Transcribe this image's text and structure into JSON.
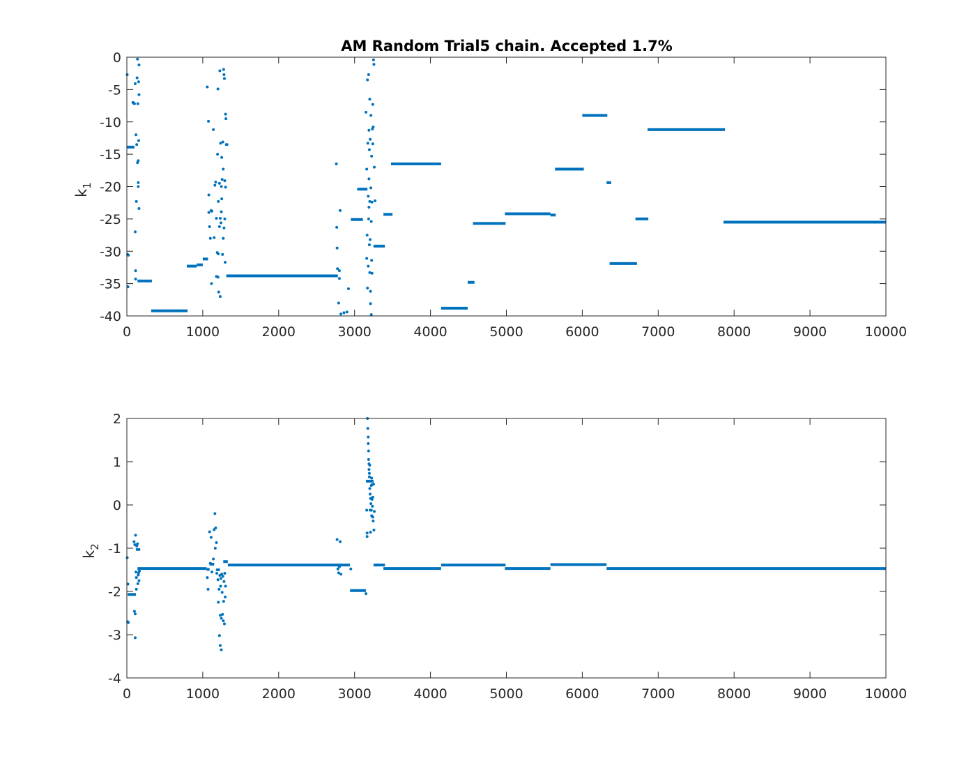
{
  "chart_data": [
    {
      "type": "scatter",
      "title": "AM Random Trial5 chain. Accepted 1.7%",
      "xlabel": "",
      "ylabel": "k",
      "ylabel_subscript": "1",
      "xlim": [
        0,
        10000
      ],
      "ylim": [
        -40,
        0
      ],
      "xticks": [
        0,
        1000,
        2000,
        3000,
        4000,
        5000,
        6000,
        7000,
        8000,
        9000,
        10000
      ],
      "yticks": [
        0,
        -5,
        -10,
        -15,
        -20,
        -25,
        -30,
        -35,
        -40
      ],
      "grid": false,
      "marker_color": "#0072BD",
      "segments": [
        {
          "x0": 0,
          "x1": 100,
          "y": -13.9
        },
        {
          "x0": 140,
          "x1": 330,
          "y": -34.6
        },
        {
          "x0": 320,
          "x1": 800,
          "y": -39.2
        },
        {
          "x0": 790,
          "x1": 920,
          "y": -32.3
        },
        {
          "x0": 920,
          "x1": 1000,
          "y": -32.1
        },
        {
          "x0": 1000,
          "x1": 1070,
          "y": -31.2
        },
        {
          "x0": 1310,
          "x1": 2780,
          "y": -33.8
        },
        {
          "x0": 2950,
          "x1": 3110,
          "y": -25.1
        },
        {
          "x0": 3060,
          "x1": 3170,
          "y": -20.4
        },
        {
          "x0": 3250,
          "x1": 3400,
          "y": -29.2
        },
        {
          "x0": 3380,
          "x1": 3500,
          "y": -24.3
        },
        {
          "x0": 3480,
          "x1": 4140,
          "y": -16.5
        },
        {
          "x0": 4140,
          "x1": 4490,
          "y": -38.8
        },
        {
          "x0": 4490,
          "x1": 4580,
          "y": -34.8
        },
        {
          "x0": 4560,
          "x1": 4990,
          "y": -25.7
        },
        {
          "x0": 4980,
          "x1": 5580,
          "y": -24.2
        },
        {
          "x0": 5580,
          "x1": 5650,
          "y": -24.4
        },
        {
          "x0": 5640,
          "x1": 6020,
          "y": -17.3
        },
        {
          "x0": 6000,
          "x1": 6330,
          "y": -9.0
        },
        {
          "x0": 6320,
          "x1": 6380,
          "y": -19.4
        },
        {
          "x0": 6360,
          "x1": 6720,
          "y": -31.9
        },
        {
          "x0": 6700,
          "x1": 6870,
          "y": -25.0
        },
        {
          "x0": 6860,
          "x1": 7880,
          "y": -11.2
        },
        {
          "x0": 7860,
          "x1": 10000,
          "y": -25.5
        }
      ],
      "points": [
        [
          5,
          -2.7
        ],
        [
          10,
          -30.5
        ],
        [
          15,
          -35.5
        ],
        [
          20,
          -30.6
        ],
        [
          30,
          -13.9
        ],
        [
          80,
          -7.0
        ],
        [
          90,
          -7.1
        ],
        [
          100,
          -7.2
        ],
        [
          110,
          -4.1
        ],
        [
          115,
          -33.0
        ],
        [
          120,
          -12.0
        ],
        [
          125,
          -22.3
        ],
        [
          130,
          -13.5
        ],
        [
          135,
          -3.2
        ],
        [
          140,
          -0.3
        ],
        [
          140,
          -16.3
        ],
        [
          145,
          -7.2
        ],
        [
          150,
          -16.0
        ],
        [
          150,
          -19.4
        ],
        [
          150,
          -20.0
        ],
        [
          155,
          -3.8
        ],
        [
          155,
          -12.9
        ],
        [
          160,
          -5.8
        ],
        [
          160,
          -23.4
        ],
        [
          160,
          -1.2
        ],
        [
          110,
          -27.0
        ],
        [
          115,
          -34.3
        ],
        [
          1060,
          -4.6
        ],
        [
          1075,
          -9.9
        ],
        [
          1080,
          -21.3
        ],
        [
          1080,
          -24.0
        ],
        [
          1090,
          -26.2
        ],
        [
          1100,
          -28.0
        ],
        [
          1110,
          -23.7
        ],
        [
          1115,
          -35.0
        ],
        [
          1120,
          -23.8
        ],
        [
          1140,
          -11.2
        ],
        [
          1150,
          -27.9
        ],
        [
          1160,
          -19.8
        ],
        [
          1170,
          -19.3
        ],
        [
          1180,
          -24.9
        ],
        [
          1190,
          -30.2
        ],
        [
          1195,
          -15.0
        ],
        [
          1200,
          -4.9
        ],
        [
          1200,
          -34.0
        ],
        [
          1205,
          -22.3
        ],
        [
          1210,
          -36.3
        ],
        [
          1220,
          -26.2
        ],
        [
          1225,
          -2.1
        ],
        [
          1230,
          -24.9
        ],
        [
          1230,
          -37.0
        ],
        [
          1235,
          -13.3
        ],
        [
          1240,
          -25.6
        ],
        [
          1245,
          -23.9
        ],
        [
          1245,
          -20.0
        ],
        [
          1250,
          -15.5
        ],
        [
          1255,
          -18.9
        ],
        [
          1260,
          -30.5
        ],
        [
          1265,
          -13.1
        ],
        [
          1270,
          -17.3
        ],
        [
          1275,
          -1.9
        ],
        [
          1280,
          -2.7
        ],
        [
          1280,
          -26.4
        ],
        [
          1285,
          -3.3
        ],
        [
          1290,
          -19.1
        ],
        [
          1290,
          -25.0
        ],
        [
          1295,
          -31.7
        ],
        [
          1300,
          -8.8
        ],
        [
          1300,
          -20.1
        ],
        [
          1305,
          -9.5
        ],
        [
          1310,
          -13.5
        ],
        [
          1320,
          -13.5
        ],
        [
          1180,
          -33.9
        ],
        [
          1220,
          -19.5
        ],
        [
          1250,
          -21.9
        ],
        [
          1270,
          -28.0
        ],
        [
          1205,
          -30.4
        ],
        [
          2760,
          -16.5
        ],
        [
          2765,
          -26.3
        ],
        [
          2770,
          -29.5
        ],
        [
          2775,
          -32.7
        ],
        [
          2790,
          -38.0
        ],
        [
          2800,
          -33.0
        ],
        [
          2810,
          -23.7
        ],
        [
          2800,
          -34.2
        ],
        [
          2820,
          -39.7
        ],
        [
          2860,
          -39.5
        ],
        [
          2900,
          -39.4
        ],
        [
          2920,
          -35.8
        ],
        [
          3050,
          -20.4
        ],
        [
          3150,
          -8.5
        ],
        [
          3160,
          -17.3
        ],
        [
          3160,
          -31.1
        ],
        [
          3165,
          -27.5
        ],
        [
          3170,
          -35.7
        ],
        [
          3170,
          -3.5
        ],
        [
          3175,
          -13.3
        ],
        [
          3180,
          -21.5
        ],
        [
          3180,
          -32.3
        ],
        [
          3185,
          -2.7
        ],
        [
          3185,
          -25.0
        ],
        [
          3190,
          -11.3
        ],
        [
          3190,
          -23.2
        ],
        [
          3195,
          -14.3
        ],
        [
          3195,
          -29.0
        ],
        [
          3200,
          -6.5
        ],
        [
          3200,
          -22.3
        ],
        [
          3200,
          -33.3
        ],
        [
          3205,
          -12.7
        ],
        [
          3210,
          -38.1
        ],
        [
          3210,
          -36.2
        ],
        [
          3215,
          -20.2
        ],
        [
          3215,
          -9.0
        ],
        [
          3220,
          -25.4
        ],
        [
          3220,
          -39.8
        ],
        [
          3225,
          -15.3
        ],
        [
          3230,
          -33.4
        ],
        [
          3230,
          -22.4
        ],
        [
          3235,
          -11.1
        ],
        [
          3240,
          -13.4
        ],
        [
          3240,
          -7.3
        ],
        [
          3245,
          -10.8
        ],
        [
          3250,
          -0.4
        ],
        [
          3255,
          -1.1
        ],
        [
          3260,
          -17.0
        ],
        [
          3270,
          -22.2
        ],
        [
          3190,
          -18.8
        ],
        [
          3205,
          -28.2
        ],
        [
          3225,
          -31.4
        ]
      ]
    },
    {
      "type": "scatter",
      "title": "",
      "xlabel": "",
      "ylabel": "k",
      "ylabel_subscript": "2",
      "xlim": [
        0,
        10000
      ],
      "ylim": [
        -4,
        2
      ],
      "xticks": [
        0,
        1000,
        2000,
        3000,
        4000,
        5000,
        6000,
        7000,
        8000,
        9000,
        10000
      ],
      "yticks": [
        2,
        1,
        0,
        -1,
        -2,
        -3,
        -4
      ],
      "grid": false,
      "marker_color": "#0072BD",
      "segments": [
        {
          "x0": 10,
          "x1": 120,
          "y": -2.07
        },
        {
          "x0": 140,
          "x1": 1050,
          "y": -1.47
        },
        {
          "x0": 1050,
          "x1": 1090,
          "y": -1.49
        },
        {
          "x0": 1090,
          "x1": 1150,
          "y": -1.37
        },
        {
          "x0": 1270,
          "x1": 1330,
          "y": -1.31
        },
        {
          "x0": 1330,
          "x1": 2940,
          "y": -1.39
        },
        {
          "x0": 2940,
          "x1": 3150,
          "y": -1.98
        },
        {
          "x0": 3150,
          "x1": 3250,
          "y": 0.55
        },
        {
          "x0": 3250,
          "x1": 3400,
          "y": -1.39
        },
        {
          "x0": 3380,
          "x1": 4140,
          "y": -1.47
        },
        {
          "x0": 4140,
          "x1": 4990,
          "y": -1.39
        },
        {
          "x0": 4980,
          "x1": 5580,
          "y": -1.47
        },
        {
          "x0": 5580,
          "x1": 6320,
          "y": -1.38
        },
        {
          "x0": 6320,
          "x1": 10000,
          "y": -1.47
        }
      ],
      "points": [
        [
          5,
          -1.22
        ],
        [
          10,
          -2.7
        ],
        [
          15,
          -1.83
        ],
        [
          20,
          -2.72
        ],
        [
          60,
          -2.07
        ],
        [
          95,
          -0.85
        ],
        [
          100,
          -2.46
        ],
        [
          105,
          -0.92
        ],
        [
          110,
          -2.52
        ],
        [
          110,
          -3.07
        ],
        [
          115,
          -0.7
        ],
        [
          120,
          -1.55
        ],
        [
          125,
          -1.68
        ],
        [
          125,
          -1.95
        ],
        [
          130,
          -0.95
        ],
        [
          135,
          -1.03
        ],
        [
          140,
          -0.9
        ],
        [
          145,
          -1.82
        ],
        [
          150,
          -1.62
        ],
        [
          155,
          -1.57
        ],
        [
          160,
          -1.75
        ],
        [
          160,
          -1.03
        ],
        [
          165,
          -1.53
        ],
        [
          1060,
          -1.68
        ],
        [
          1070,
          -1.95
        ],
        [
          1090,
          -0.62
        ],
        [
          1100,
          -1.35
        ],
        [
          1110,
          -0.75
        ],
        [
          1120,
          -1.55
        ],
        [
          1140,
          -1.25
        ],
        [
          1150,
          -0.57
        ],
        [
          1160,
          -0.2
        ],
        [
          1165,
          -1.0
        ],
        [
          1170,
          -0.53
        ],
        [
          1180,
          -0.87
        ],
        [
          1185,
          -1.58
        ],
        [
          1190,
          -1.5
        ],
        [
          1200,
          -1.73
        ],
        [
          1205,
          -2.25
        ],
        [
          1210,
          -1.5
        ],
        [
          1215,
          -1.95
        ],
        [
          1220,
          -3.02
        ],
        [
          1225,
          -1.63
        ],
        [
          1230,
          -3.25
        ],
        [
          1230,
          -2.55
        ],
        [
          1235,
          -1.88
        ],
        [
          1240,
          -1.7
        ],
        [
          1245,
          -3.35
        ],
        [
          1245,
          -2.62
        ],
        [
          1250,
          -1.6
        ],
        [
          1255,
          -2.02
        ],
        [
          1260,
          -2.53
        ],
        [
          1265,
          -1.65
        ],
        [
          1270,
          -2.68
        ],
        [
          1275,
          -2.23
        ],
        [
          1280,
          -1.77
        ],
        [
          1285,
          -2.75
        ],
        [
          1290,
          -1.58
        ],
        [
          1295,
          -2.13
        ],
        [
          1300,
          -1.88
        ],
        [
          2770,
          -0.8
        ],
        [
          2780,
          -1.48
        ],
        [
          2790,
          -1.57
        ],
        [
          2800,
          -1.43
        ],
        [
          2810,
          -0.85
        ],
        [
          2820,
          -1.6
        ],
        [
          2950,
          -1.48
        ],
        [
          3150,
          -2.05
        ],
        [
          3170,
          2.0
        ],
        [
          3175,
          1.77
        ],
        [
          3180,
          1.57
        ],
        [
          3180,
          1.42
        ],
        [
          3185,
          1.25
        ],
        [
          3185,
          1.05
        ],
        [
          3190,
          0.95
        ],
        [
          3190,
          0.82
        ],
        [
          3195,
          0.65
        ],
        [
          3195,
          0.73
        ],
        [
          3200,
          0.92
        ],
        [
          3200,
          0.38
        ],
        [
          3205,
          0.25
        ],
        [
          3205,
          -0.12
        ],
        [
          3210,
          0.15
        ],
        [
          3210,
          -0.63
        ],
        [
          3215,
          0.55
        ],
        [
          3215,
          0.03
        ],
        [
          3220,
          -0.12
        ],
        [
          3220,
          0.45
        ],
        [
          3225,
          0.62
        ],
        [
          3225,
          -0.25
        ],
        [
          3230,
          0.13
        ],
        [
          3230,
          0.47
        ],
        [
          3235,
          -0.03
        ],
        [
          3240,
          -0.28
        ],
        [
          3240,
          0.18
        ],
        [
          3245,
          -0.37
        ],
        [
          3250,
          0.48
        ],
        [
          3255,
          -0.58
        ],
        [
          3260,
          -0.15
        ],
        [
          3165,
          -0.73
        ],
        [
          3160,
          -0.12
        ],
        [
          3165,
          -0.65
        ]
      ]
    }
  ]
}
